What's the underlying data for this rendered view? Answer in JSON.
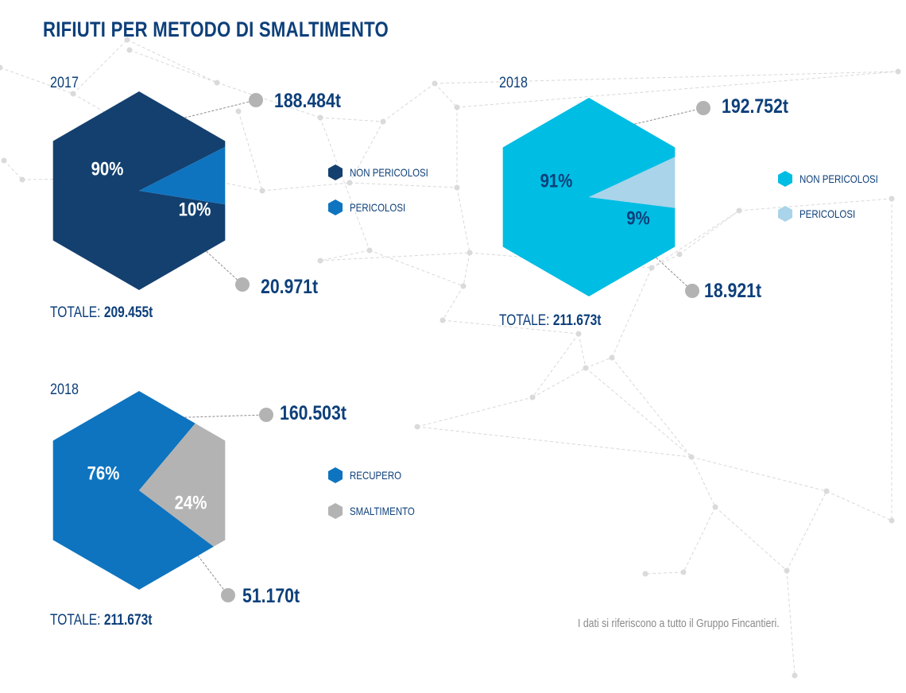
{
  "title": "RIFIUTI PER METODO DI SMALTIMENTO",
  "note": "I dati si riferiscono a tutto il Gruppo Fincantieri.",
  "colors": {
    "dark_blue": "#13406f",
    "mid_blue": "#0e74bf",
    "cyan": "#00bde3",
    "light_blue": "#a9d4ea",
    "grey": "#b3b3b3",
    "text": "#0d3f7a",
    "dot": "#b3b3b3"
  },
  "chart_data": [
    {
      "type": "pie",
      "year": "2017",
      "categories": [
        "NON PERICOLOSI",
        "PERICOLOSI"
      ],
      "values": [
        188484,
        20971
      ],
      "value_labels": [
        "188.484t",
        "20.971t"
      ],
      "percent_labels": [
        "90%",
        "10%"
      ],
      "total_label": "TOTALE:",
      "total_value": "209.455t",
      "colors": [
        "#13406f",
        "#0e74bf"
      ],
      "legend_placement": "right"
    },
    {
      "type": "pie",
      "year": "2018",
      "categories": [
        "NON PERICOLOSI",
        "PERICOLOSI"
      ],
      "values": [
        192752,
        18921
      ],
      "value_labels": [
        "192.752t",
        "18.921t"
      ],
      "percent_labels": [
        "91%",
        "9%"
      ],
      "total_label": "TOTALE:",
      "total_value": "211.673t",
      "colors": [
        "#00bde3",
        "#a9d4ea"
      ],
      "legend_placement": "right"
    },
    {
      "type": "pie",
      "year": "2018",
      "categories": [
        "RECUPERO",
        "SMALTIMENTO"
      ],
      "values": [
        160503,
        51170
      ],
      "value_labels": [
        "160.503t",
        "51.170t"
      ],
      "percent_labels": [
        "76%",
        "24%"
      ],
      "total_label": "TOTALE:",
      "total_value": "211.673t",
      "colors": [
        "#0e74bf",
        "#b3b3b3"
      ],
      "legend_placement": "right"
    }
  ]
}
